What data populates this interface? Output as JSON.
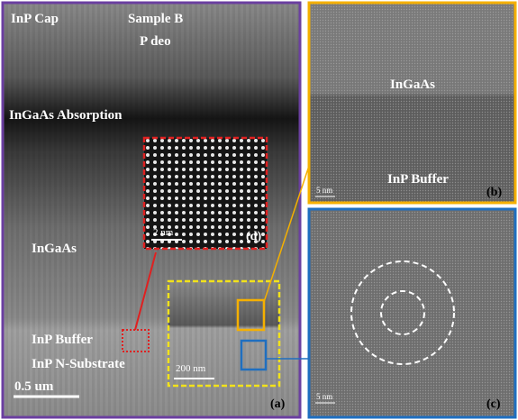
{
  "panel_a": {
    "labels": {
      "cap": "InP Cap",
      "sample": "Sample B",
      "deo": "P deo",
      "absorption": "InGaAs Absorption",
      "ingaas": "InGaAs",
      "buffer": "InP Buffer",
      "substrate": "InP N-Substrate"
    },
    "scale_bar": "0.5 um",
    "inset_scale_bar": "200 nm",
    "tag": "(a)"
  },
  "panel_b": {
    "labels": {
      "top": "InGaAs",
      "bottom": "InP Buffer"
    },
    "scale_bar": "5 nm",
    "tag": "(b)"
  },
  "panel_c": {
    "scale_bar": "5 nm",
    "tag": "(c)"
  },
  "panel_d": {
    "scale_bar": "2 nm",
    "tag": "(d)"
  }
}
